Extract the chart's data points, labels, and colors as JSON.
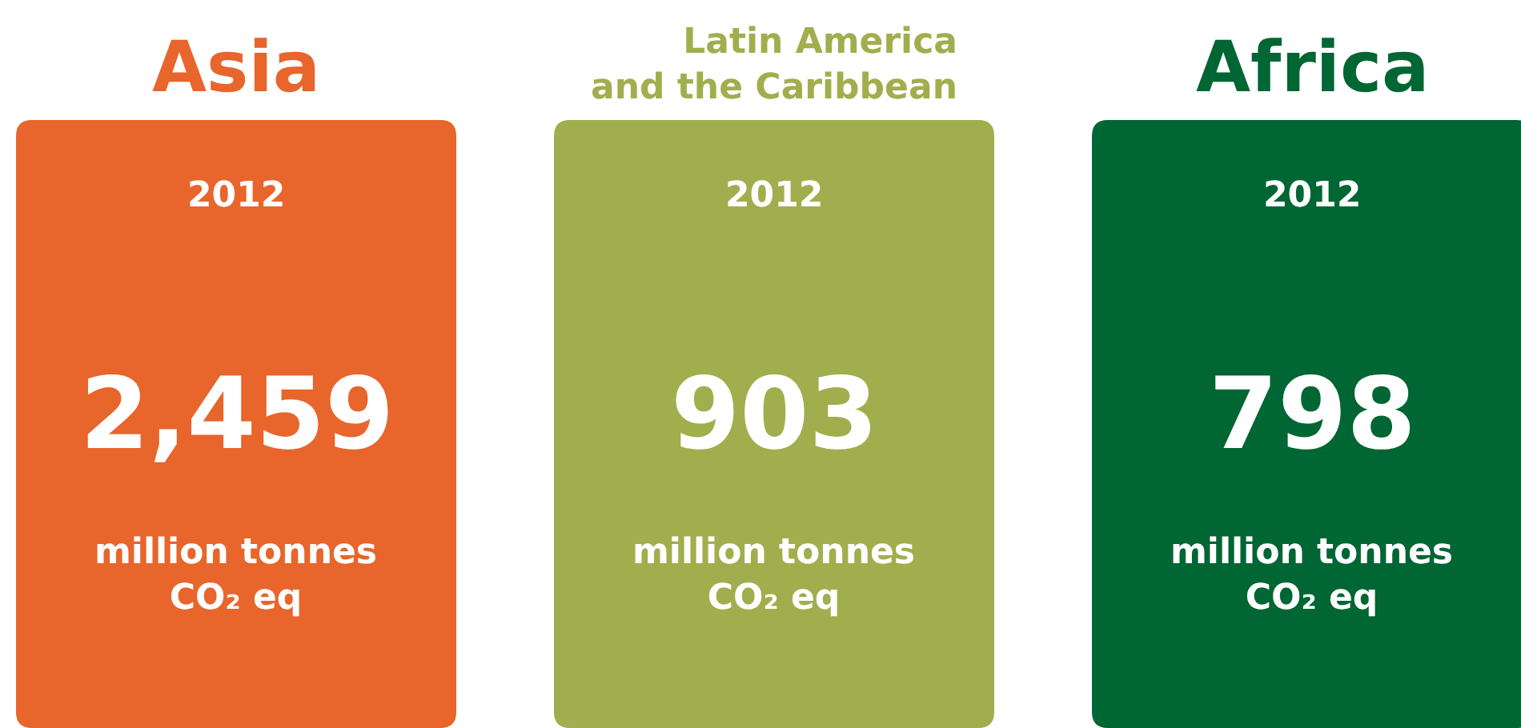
{
  "chart_data": {
    "type": "other",
    "categories": [
      "Asia",
      "Latin America\nand the Caribbean",
      "Africa"
    ],
    "values": [
      2459,
      903,
      798
    ],
    "value_labels": [
      "2,459",
      "903",
      "798"
    ],
    "colors": [
      "#e8652b",
      "#a1ae4d",
      "#006633"
    ],
    "annotations": [
      "2012",
      "million tonnes\nCO₂ eq"
    ]
  }
}
